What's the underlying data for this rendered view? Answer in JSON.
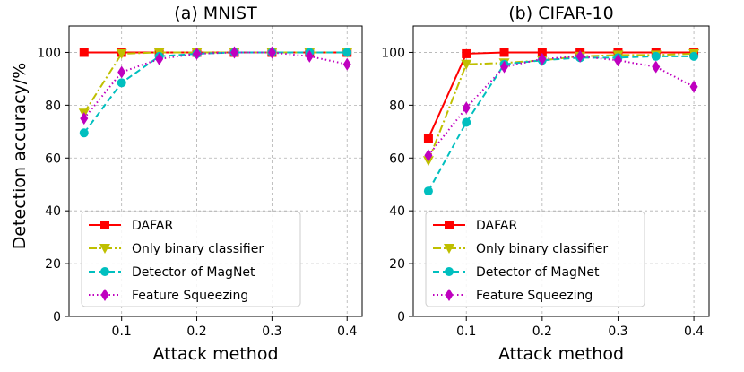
{
  "figure": {
    "ylabel": "Detection accuracy/%",
    "colors": {
      "dafar": "#ff0000",
      "binary": "#bfbf00",
      "magnet": "#00bfbf",
      "squeeze": "#bf00bf",
      "grid": "#b0b0b0"
    }
  },
  "chart_data": [
    {
      "type": "line",
      "title": "(a) MNIST",
      "xlabel": "Attack method",
      "ylabel": "Detection accuracy/%",
      "xlim": [
        0.03,
        0.42
      ],
      "ylim": [
        0,
        110
      ],
      "xticks": [
        0.1,
        0.2,
        0.3,
        0.4
      ],
      "xtick_labels": [
        "0.1",
        "0.2",
        "0.3",
        "0.4"
      ],
      "yticks": [
        0,
        20,
        40,
        60,
        80,
        100
      ],
      "ytick_labels": [
        "0",
        "20",
        "40",
        "60",
        "80",
        "100"
      ],
      "grid": true,
      "legend_position": "lower-left",
      "x": [
        0.05,
        0.1,
        0.15,
        0.2,
        0.25,
        0.3,
        0.35,
        0.4
      ],
      "series": [
        {
          "name": "DAFAR",
          "marker": "square",
          "dash": "solid",
          "color": "#ff0000",
          "values": [
            100,
            100,
            100,
            100,
            100,
            100,
            100,
            100
          ]
        },
        {
          "name": "Only binary classifier",
          "marker": "triangle-down",
          "dash": "dashdot",
          "color": "#bfbf00",
          "values": [
            77,
            99.5,
            100,
            100,
            100,
            100,
            100,
            100
          ]
        },
        {
          "name": "Detector of MagNet",
          "marker": "circle",
          "dash": "dashed",
          "color": "#00bfbf",
          "values": [
            69.5,
            88.5,
            98.5,
            99.5,
            100,
            100,
            100,
            100
          ]
        },
        {
          "name": "Feature Squeezing",
          "marker": "diamond",
          "dash": "dotted",
          "color": "#bf00bf",
          "values": [
            75,
            92.5,
            97.5,
            99.5,
            100,
            100,
            98.5,
            95.5
          ]
        }
      ]
    },
    {
      "type": "line",
      "title": "(b) CIFAR-10",
      "xlabel": "Attack method",
      "ylabel": "",
      "xlim": [
        0.03,
        0.42
      ],
      "ylim": [
        0,
        110
      ],
      "xticks": [
        0.1,
        0.2,
        0.3,
        0.4
      ],
      "xtick_labels": [
        "0.1",
        "0.2",
        "0.3",
        "0.4"
      ],
      "yticks": [
        0,
        20,
        40,
        60,
        80,
        100
      ],
      "ytick_labels": [
        "0",
        "20",
        "40",
        "60",
        "80",
        "100"
      ],
      "grid": true,
      "legend_position": "lower-left",
      "x": [
        0.05,
        0.1,
        0.15,
        0.2,
        0.25,
        0.3,
        0.35,
        0.4
      ],
      "series": [
        {
          "name": "DAFAR",
          "marker": "square",
          "dash": "solid",
          "color": "#ff0000",
          "values": [
            67.5,
            99.5,
            100,
            100,
            100,
            100,
            100,
            100
          ]
        },
        {
          "name": "Only binary classifier",
          "marker": "triangle-down",
          "dash": "dashdot",
          "color": "#bfbf00",
          "values": [
            59,
            95.5,
            96,
            97,
            98.5,
            99,
            99,
            99.5
          ]
        },
        {
          "name": "Detector of MagNet",
          "marker": "circle",
          "dash": "dashed",
          "color": "#00bfbf",
          "values": [
            47.5,
            73.5,
            95.5,
            97,
            98,
            98,
            98.5,
            98.5
          ]
        },
        {
          "name": "Feature Squeezing",
          "marker": "diamond",
          "dash": "dotted",
          "color": "#bf00bf",
          "values": [
            61,
            79,
            94.5,
            97.5,
            98.5,
            97,
            94.5,
            87
          ]
        }
      ]
    }
  ]
}
